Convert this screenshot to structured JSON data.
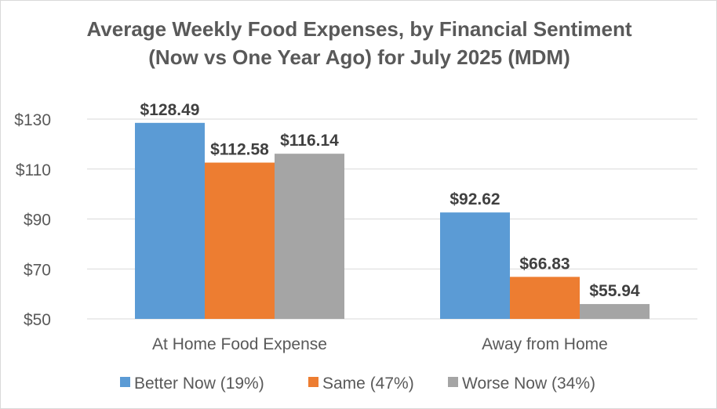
{
  "chart_data": {
    "type": "bar",
    "title": "Average Weekly Food Expenses, by Financial Sentiment",
    "subtitle": "(Now vs One Year Ago) for July 2025 (MDM)",
    "categories": [
      "At Home Food Expense",
      "Away from Home"
    ],
    "series": [
      {
        "name": "Better Now (19%)",
        "color": "#5b9bd5",
        "values": [
          128.49,
          92.62
        ],
        "labels": [
          "$128.49",
          "$92.62"
        ]
      },
      {
        "name": "Same (47%)",
        "color": "#ed7d31",
        "values": [
          112.58,
          66.83
        ],
        "labels": [
          "$112.58",
          "$66.83"
        ]
      },
      {
        "name": "Worse Now (34%)",
        "color": "#a5a5a5",
        "values": [
          116.14,
          55.94
        ],
        "labels": [
          "$116.14",
          "$55.94"
        ]
      }
    ],
    "ylim": [
      50,
      130
    ],
    "yticks": [
      50,
      70,
      90,
      110,
      130
    ],
    "ytick_labels": [
      "$50",
      "$70",
      "$90",
      "$110",
      "$130"
    ],
    "xlabel": "",
    "ylabel": "",
    "grid": true,
    "legend": "bottom"
  }
}
